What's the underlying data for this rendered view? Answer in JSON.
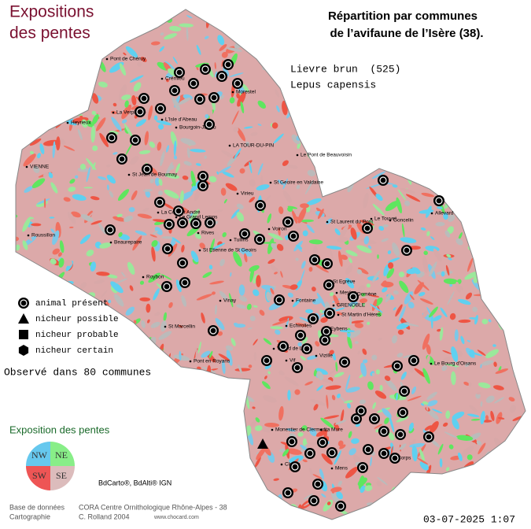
{
  "header": {
    "title_lines": [
      "Expositions",
      "des pentes"
    ],
    "subtitle_lines": [
      "Répartition par communes",
      "de l’avifaune de l’Isère (38)."
    ]
  },
  "species": {
    "common_name": "Lievre brun  (525)",
    "latin_name": "Lepus capensis"
  },
  "legend": {
    "items": [
      "animal présent",
      "nicheur possible",
      "nicheur probable",
      "nicheur certain"
    ]
  },
  "observed": "Observé dans 80 communes",
  "exposure": {
    "title": "Exposition des pentes",
    "quadrants": [
      "NW",
      "NE",
      "SW",
      "SE"
    ]
  },
  "source": "BdCarto®, BdAlti® IGN",
  "credits": {
    "database_label": "Base de données",
    "database": "CORA Centre Ornithologique Rhône-Alpes - 38",
    "mapping_label": "Cartographie",
    "mapping": "C. Rolland 2004",
    "website": "www.chocard.com"
  },
  "timestamp": "03-07-2025 1:07",
  "towns": [
    "Pont de Chéruy",
    "Crémieu",
    "Morestel",
    "La Verpillière",
    "L'Isle d'Abeau",
    "Bourgoin-Jallieu",
    "Heyrieux",
    "VIENNE",
    "LA TOUR-DU-PIN",
    "Le Pont de Beauvoisin",
    "St Jean de Bournay",
    "Virieu",
    "St Geoire en Valdaine",
    "La Côte St André",
    "Le Grand Lemps",
    "Beaurepaire",
    "Roussillon",
    "Rives",
    "Voiron",
    "Tullins",
    "Roybon",
    "St Etienne de St Geoirs",
    "St Laurent du Pont",
    "Allevard",
    "Le Touvet",
    "Goncelin",
    "St Egrève",
    "Meylan",
    "GRENOBLE",
    "Domène",
    "Fontaine",
    "Vinay",
    "St Marcellin",
    "Echirolles",
    "Eybens",
    "St Martin d'Hères",
    "Villard de Lans",
    "Vif",
    "Vizille",
    "Pont en Royans",
    "Le Bourg d'Oisans",
    "Monestier de Clermont",
    "La Mure",
    "Mens",
    "Corps",
    "Clelles"
  ]
}
